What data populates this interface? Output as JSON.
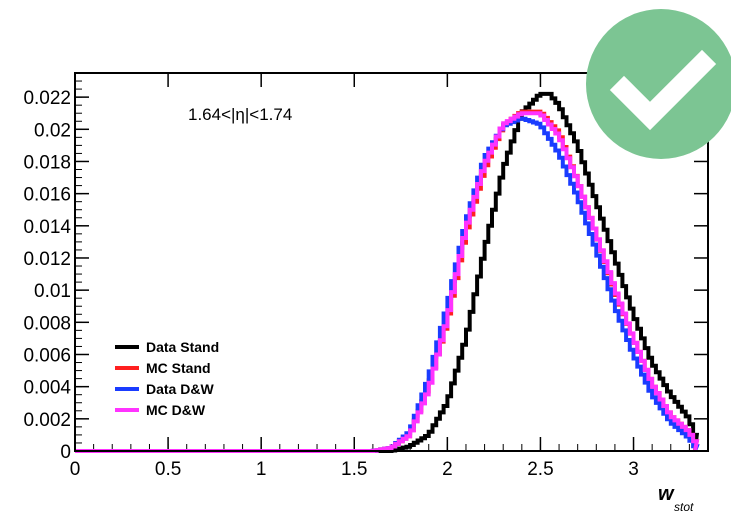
{
  "colors": {
    "badge": "#7cc593",
    "check": "#ffffff",
    "frame": "#000000"
  },
  "badge": {
    "icon": "checkmark-icon"
  },
  "chart_data": {
    "type": "line",
    "title": "",
    "annotation": "1.64<|η|<1.74",
    "xlabel": {
      "main": "w",
      "sub": "stot"
    },
    "ylabel": "",
    "xlim": [
      0,
      3.4
    ],
    "ylim": [
      0,
      0.0235
    ],
    "x_ticks": [
      0,
      0.5,
      1,
      1.5,
      2,
      2.5,
      3
    ],
    "x_tick_labels": [
      "0",
      "0.5",
      "1",
      "1.5",
      "2",
      "2.5",
      "3"
    ],
    "y_ticks": [
      0,
      0.002,
      0.004,
      0.006,
      0.008,
      0.01,
      0.012,
      0.014,
      0.016,
      0.018,
      0.02,
      0.022
    ],
    "y_tick_labels": [
      "0",
      "0.002",
      "0.004",
      "0.006",
      "0.008",
      "0.01",
      "0.012",
      "0.014",
      "0.016",
      "0.018",
      "0.02",
      "0.022"
    ],
    "legend_position": "bottom-left",
    "series": [
      {
        "name": "Data Stand",
        "color": "#000000",
        "points": [
          [
            0,
            0
          ],
          [
            1.7,
            0
          ],
          [
            1.8,
            0.0003
          ],
          [
            1.9,
            0.001
          ],
          [
            2.0,
            0.003
          ],
          [
            2.1,
            0.007
          ],
          [
            2.2,
            0.0125
          ],
          [
            2.3,
            0.0175
          ],
          [
            2.4,
            0.021
          ],
          [
            2.5,
            0.0222
          ],
          [
            2.55,
            0.0222
          ],
          [
            2.6,
            0.0215
          ],
          [
            2.7,
            0.019
          ],
          [
            2.8,
            0.0155
          ],
          [
            2.9,
            0.012
          ],
          [
            3.0,
            0.0085
          ],
          [
            3.1,
            0.0055
          ],
          [
            3.2,
            0.0035
          ],
          [
            3.3,
            0.002
          ],
          [
            3.33,
            0.001
          ]
        ]
      },
      {
        "name": "MC Stand",
        "color": "#ff2020",
        "points": [
          [
            0,
            0
          ],
          [
            1.6,
            0
          ],
          [
            1.7,
            0.0002
          ],
          [
            1.8,
            0.001
          ],
          [
            1.9,
            0.004
          ],
          [
            2.0,
            0.008
          ],
          [
            2.1,
            0.0135
          ],
          [
            2.2,
            0.0175
          ],
          [
            2.3,
            0.0202
          ],
          [
            2.4,
            0.0211
          ],
          [
            2.5,
            0.0211
          ],
          [
            2.6,
            0.0198
          ],
          [
            2.7,
            0.0168
          ],
          [
            2.8,
            0.0135
          ],
          [
            2.9,
            0.01
          ],
          [
            3.0,
            0.007
          ],
          [
            3.1,
            0.0042
          ],
          [
            3.2,
            0.0022
          ],
          [
            3.3,
            0.0012
          ],
          [
            3.33,
            0.0006
          ]
        ]
      },
      {
        "name": "Data D&W",
        "color": "#1a3cff",
        "points": [
          [
            0,
            0
          ],
          [
            1.6,
            0
          ],
          [
            1.7,
            0.0002
          ],
          [
            1.8,
            0.0012
          ],
          [
            1.9,
            0.0045
          ],
          [
            2.0,
            0.009
          ],
          [
            2.1,
            0.0142
          ],
          [
            2.2,
            0.0182
          ],
          [
            2.3,
            0.0202
          ],
          [
            2.4,
            0.0207
          ],
          [
            2.5,
            0.0203
          ],
          [
            2.6,
            0.0185
          ],
          [
            2.7,
            0.0158
          ],
          [
            2.8,
            0.0125
          ],
          [
            2.9,
            0.009
          ],
          [
            3.0,
            0.006
          ],
          [
            3.1,
            0.0035
          ],
          [
            3.2,
            0.0018
          ],
          [
            3.3,
            0.0008
          ],
          [
            3.33,
            0.0003
          ]
        ]
      },
      {
        "name": "MC D&W",
        "color": "#ff33ff",
        "points": [
          [
            0,
            0
          ],
          [
            1.6,
            0
          ],
          [
            1.7,
            0.0002
          ],
          [
            1.8,
            0.001
          ],
          [
            1.9,
            0.0038
          ],
          [
            2.0,
            0.0082
          ],
          [
            2.1,
            0.0138
          ],
          [
            2.2,
            0.0178
          ],
          [
            2.3,
            0.0203
          ],
          [
            2.4,
            0.021
          ],
          [
            2.5,
            0.021
          ],
          [
            2.6,
            0.0196
          ],
          [
            2.7,
            0.0168
          ],
          [
            2.8,
            0.0135
          ],
          [
            2.9,
            0.0101
          ],
          [
            3.0,
            0.007
          ],
          [
            3.1,
            0.0042
          ],
          [
            3.2,
            0.0022
          ],
          [
            3.3,
            0.0012
          ],
          [
            3.33,
            0.0006
          ]
        ]
      }
    ]
  }
}
